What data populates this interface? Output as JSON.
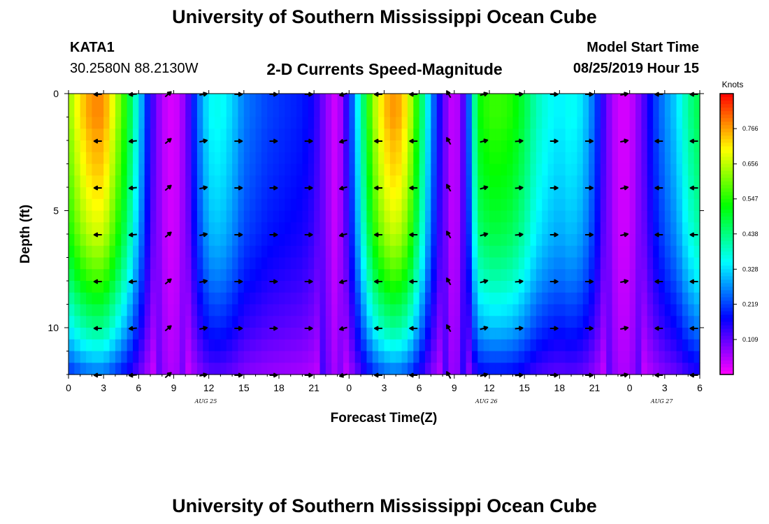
{
  "header": {
    "title_top": "University of Southern Mississippi Ocean Cube",
    "title_bottom": "University of Southern Mississippi Ocean Cube",
    "station_id": "KATA1",
    "station_coords": "30.2580N 88.2130W",
    "chart_title": "2-D Currents Speed-Magnitude",
    "model_start_label": "Model Start Time",
    "model_start_value": "08/25/2019 Hour 15"
  },
  "chart_data": {
    "type": "heatmap",
    "title": "2-D Currents Speed-Magnitude",
    "xlabel": "Forecast Time(Z)",
    "ylabel": "Depth (ft)",
    "x_range_hours": [
      0,
      54
    ],
    "y_range_ft": [
      0,
      12
    ],
    "x_ticks": [
      {
        "hour": 0,
        "label": "0"
      },
      {
        "hour": 3,
        "label": "3"
      },
      {
        "hour": 6,
        "label": "6"
      },
      {
        "hour": 9,
        "label": "9"
      },
      {
        "hour": 12,
        "label": "12"
      },
      {
        "hour": 15,
        "label": "15"
      },
      {
        "hour": 18,
        "label": "18"
      },
      {
        "hour": 21,
        "label": "21"
      },
      {
        "hour": 24,
        "label": "0"
      },
      {
        "hour": 27,
        "label": "3"
      },
      {
        "hour": 30,
        "label": "6"
      },
      {
        "hour": 33,
        "label": "9"
      },
      {
        "hour": 36,
        "label": "12"
      },
      {
        "hour": 39,
        "label": "15"
      },
      {
        "hour": 42,
        "label": "18"
      },
      {
        "hour": 45,
        "label": "21"
      },
      {
        "hour": 48,
        "label": "0"
      },
      {
        "hour": 51,
        "label": "3"
      },
      {
        "hour": 54,
        "label": "6"
      }
    ],
    "y_ticks": [
      {
        "depth": 0,
        "label": "0"
      },
      {
        "depth": 5,
        "label": "5"
      },
      {
        "depth": 10,
        "label": "10"
      }
    ],
    "day_labels": [
      {
        "hour": 12,
        "label": "AUG 25"
      },
      {
        "hour": 36,
        "label": "AUG 26"
      },
      {
        "hour": 51,
        "label": "AUG 27"
      }
    ],
    "colorbar": {
      "units": "Knots",
      "min": 0.0,
      "max": 0.875,
      "ticks": [
        0.109,
        0.219,
        0.328,
        0.438,
        0.547,
        0.656,
        0.766
      ]
    },
    "surface_speed_knots_by_hour": [
      [
        0,
        0.62
      ],
      [
        1,
        0.72
      ],
      [
        2,
        0.78
      ],
      [
        3,
        0.78
      ],
      [
        4,
        0.66
      ],
      [
        5,
        0.52
      ],
      [
        6,
        0.34
      ],
      [
        7,
        0.15
      ],
      [
        8,
        0.05
      ],
      [
        9,
        0.02
      ],
      [
        10,
        0.08
      ],
      [
        11,
        0.24
      ],
      [
        12,
        0.35
      ],
      [
        13,
        0.36
      ],
      [
        14,
        0.32
      ],
      [
        15,
        0.26
      ],
      [
        16,
        0.24
      ],
      [
        17,
        0.22
      ],
      [
        18,
        0.21
      ],
      [
        19,
        0.2
      ],
      [
        20,
        0.19
      ],
      [
        21,
        0.16
      ],
      [
        22,
        0.08
      ],
      [
        23,
        0.02
      ],
      [
        24,
        0.18
      ],
      [
        25,
        0.4
      ],
      [
        26,
        0.62
      ],
      [
        27,
        0.74
      ],
      [
        28,
        0.78
      ],
      [
        29,
        0.7
      ],
      [
        30,
        0.5
      ],
      [
        31,
        0.28
      ],
      [
        32,
        0.12
      ],
      [
        33,
        0.02
      ],
      [
        34,
        0.15
      ],
      [
        35,
        0.52
      ],
      [
        36,
        0.56
      ],
      [
        37,
        0.56
      ],
      [
        38,
        0.54
      ],
      [
        39,
        0.48
      ],
      [
        40,
        0.4
      ],
      [
        41,
        0.36
      ],
      [
        42,
        0.34
      ],
      [
        43,
        0.36
      ],
      [
        44,
        0.33
      ],
      [
        45,
        0.24
      ],
      [
        46,
        0.1
      ],
      [
        47,
        0.03
      ],
      [
        48,
        0.03
      ],
      [
        49,
        0.1
      ],
      [
        50,
        0.2
      ],
      [
        51,
        0.27
      ],
      [
        52,
        0.32
      ],
      [
        53,
        0.42
      ],
      [
        54,
        0.48
      ]
    ],
    "depth_attenuation": [
      [
        0,
        1.0
      ],
      [
        1,
        1.0
      ],
      [
        2,
        0.97
      ],
      [
        3,
        0.95
      ],
      [
        4,
        0.92
      ],
      [
        5,
        0.89
      ],
      [
        6,
        0.85
      ],
      [
        7,
        0.79
      ],
      [
        8,
        0.72
      ],
      [
        9,
        0.63
      ],
      [
        10,
        0.55
      ],
      [
        11,
        0.44
      ],
      [
        12,
        0.32
      ]
    ],
    "vector_grid": {
      "hours": [
        3,
        6,
        9,
        12,
        15,
        18,
        21,
        24,
        27,
        30,
        33,
        36,
        39,
        42,
        45,
        48,
        51,
        54
      ],
      "depths_ft": [
        0,
        2,
        4,
        6,
        8,
        10,
        12
      ],
      "direction_deg_by_hour": [
        [
          3,
          180
        ],
        [
          6,
          185
        ],
        [
          9,
          40
        ],
        [
          12,
          10
        ],
        [
          15,
          0
        ],
        [
          18,
          0
        ],
        [
          21,
          0
        ],
        [
          24,
          195
        ],
        [
          27,
          180
        ],
        [
          30,
          180
        ],
        [
          33,
          120
        ],
        [
          36,
          15
        ],
        [
          39,
          5
        ],
        [
          42,
          0
        ],
        [
          45,
          0
        ],
        [
          48,
          10
        ],
        [
          51,
          180
        ],
        [
          54,
          180
        ]
      ]
    }
  }
}
